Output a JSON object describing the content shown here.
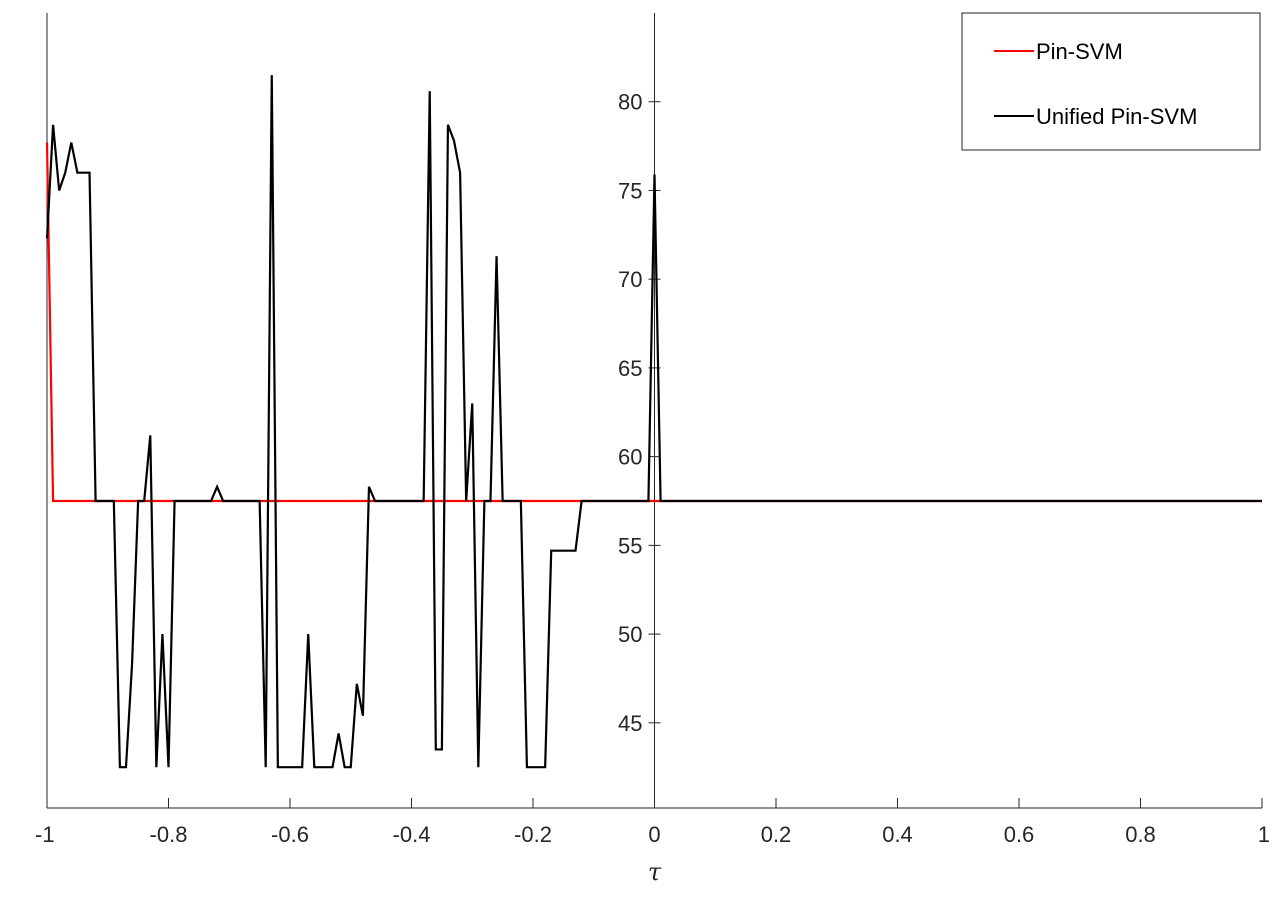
{
  "chart_data": {
    "type": "line",
    "xlabel": "τ",
    "ylabel": "",
    "title": "",
    "xlim": [
      -1,
      1
    ],
    "ylim": [
      40.2,
      85
    ],
    "grid": false,
    "legend_position": "top-right",
    "x_ticks": [
      -1,
      -0.8,
      -0.6,
      -0.4,
      -0.2,
      0,
      0.2,
      0.4,
      0.6,
      0.8,
      1
    ],
    "x_tick_labels": [
      "-1",
      "-0.8",
      "-0.6",
      "-0.4",
      "-0.2",
      "0",
      "0.2",
      "0.4",
      "0.6",
      "0.8",
      "1"
    ],
    "y_ticks": [
      45,
      50,
      55,
      60,
      65,
      70,
      75,
      80
    ],
    "y_tick_labels": [
      "45",
      "50",
      "55",
      "60",
      "65",
      "70",
      "75",
      "80"
    ],
    "series": [
      {
        "name": "Pin-SVM",
        "color": "#ff0000",
        "x": [
          -1.0,
          -0.99,
          -0.8,
          -0.6,
          -0.4,
          -0.2,
          0.0,
          0.2,
          0.4,
          0.6,
          0.8,
          1.0
        ],
        "y": [
          77.7,
          57.5,
          57.5,
          57.5,
          57.5,
          57.5,
          57.5,
          57.5,
          57.5,
          57.5,
          57.5,
          57.5
        ]
      },
      {
        "name": "Unified Pin-SVM",
        "color": "#000000",
        "x": [
          -1.0,
          -0.99,
          -0.98,
          -0.97,
          -0.96,
          -0.95,
          -0.94,
          -0.93,
          -0.92,
          -0.91,
          -0.9,
          -0.89,
          -0.88,
          -0.87,
          -0.86,
          -0.85,
          -0.84,
          -0.83,
          -0.82,
          -0.81,
          -0.8,
          -0.79,
          -0.78,
          -0.77,
          -0.76,
          -0.75,
          -0.74,
          -0.73,
          -0.72,
          -0.71,
          -0.7,
          -0.69,
          -0.68,
          -0.67,
          -0.66,
          -0.65,
          -0.64,
          -0.63,
          -0.62,
          -0.61,
          -0.6,
          -0.59,
          -0.58,
          -0.57,
          -0.56,
          -0.55,
          -0.54,
          -0.53,
          -0.52,
          -0.51,
          -0.5,
          -0.49,
          -0.48,
          -0.47,
          -0.46,
          -0.45,
          -0.44,
          -0.43,
          -0.42,
          -0.41,
          -0.4,
          -0.39,
          -0.38,
          -0.37,
          -0.36,
          -0.35,
          -0.34,
          -0.33,
          -0.32,
          -0.31,
          -0.3,
          -0.29,
          -0.28,
          -0.27,
          -0.26,
          -0.25,
          -0.24,
          -0.23,
          -0.22,
          -0.21,
          -0.2,
          -0.19,
          -0.18,
          -0.17,
          -0.16,
          -0.15,
          -0.14,
          -0.13,
          -0.12,
          -0.11,
          -0.1,
          -0.09,
          -0.08,
          -0.07,
          -0.06,
          -0.05,
          -0.04,
          -0.03,
          -0.02,
          -0.01,
          0.0,
          0.01,
          0.02,
          0.05,
          0.1,
          0.2,
          0.3,
          0.4,
          0.5,
          0.6,
          0.7,
          0.8,
          0.9,
          1.0
        ],
        "y": [
          72.3,
          78.7,
          75.0,
          76.0,
          77.7,
          76.0,
          76.0,
          76.0,
          57.5,
          57.5,
          57.5,
          57.5,
          42.5,
          42.5,
          48.3,
          57.5,
          57.5,
          61.2,
          42.5,
          50.0,
          42.5,
          57.5,
          57.5,
          57.5,
          57.5,
          57.5,
          57.5,
          57.5,
          58.3,
          57.5,
          57.5,
          57.5,
          57.5,
          57.5,
          57.5,
          57.5,
          42.5,
          81.5,
          42.5,
          42.5,
          42.5,
          42.5,
          42.5,
          50.0,
          42.5,
          42.5,
          42.5,
          42.5,
          44.4,
          42.5,
          42.5,
          47.2,
          45.4,
          58.3,
          57.5,
          57.5,
          57.5,
          57.5,
          57.5,
          57.5,
          57.5,
          57.5,
          57.5,
          80.6,
          43.5,
          43.5,
          78.7,
          77.8,
          76.0,
          57.5,
          63.0,
          42.5,
          57.5,
          57.5,
          71.3,
          57.5,
          57.5,
          57.5,
          57.5,
          42.5,
          42.5,
          42.5,
          42.5,
          54.7,
          54.7,
          54.7,
          54.7,
          54.7,
          57.5,
          57.5,
          57.5,
          57.5,
          57.5,
          57.5,
          57.5,
          57.5,
          57.5,
          57.5,
          57.5,
          57.5,
          75.9,
          57.5,
          57.5,
          57.5,
          57.5,
          57.5,
          57.5,
          57.5,
          57.5,
          57.5,
          57.5,
          57.5,
          57.5,
          57.5
        ]
      }
    ]
  }
}
